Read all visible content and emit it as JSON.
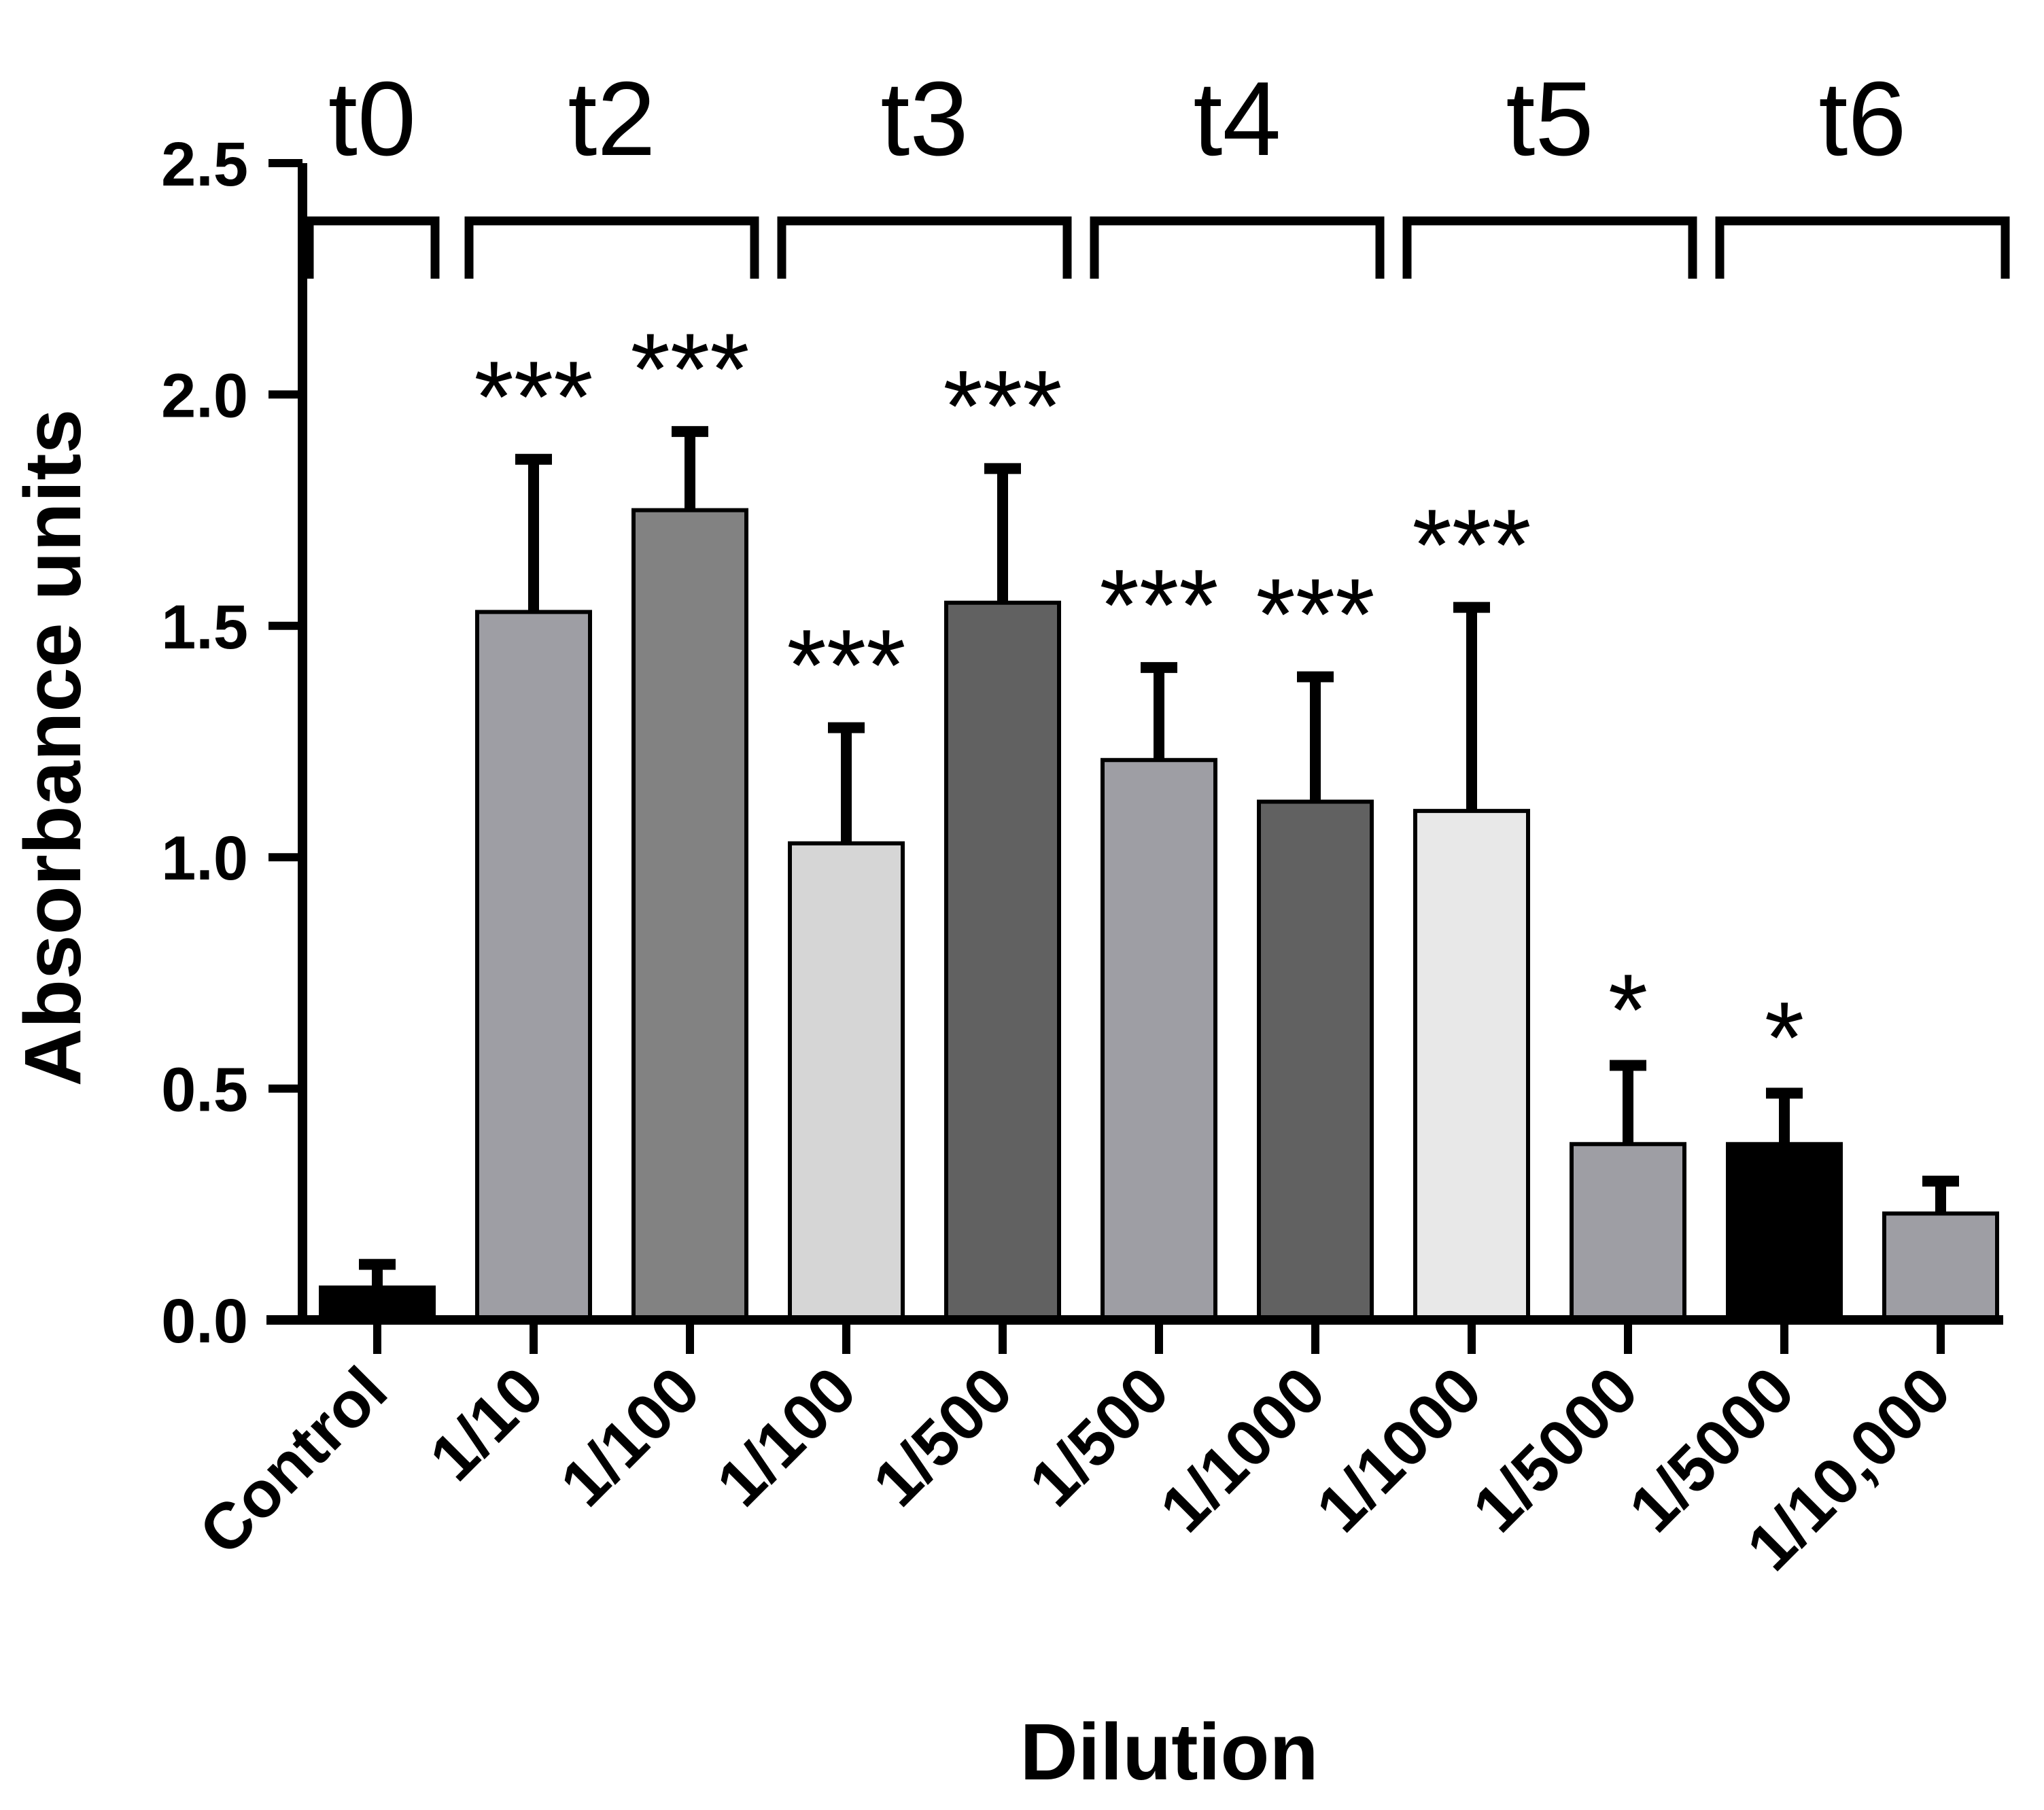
{
  "chart_data": {
    "type": "bar",
    "title": "",
    "xlabel": "Dilution",
    "ylabel": "Absorbance units",
    "ylim": [
      0,
      2.5
    ],
    "yticks": [
      "0.0",
      "0.5",
      "1.0",
      "1.5",
      "2.0",
      "2.5"
    ],
    "categories": [
      "Control",
      "1/10",
      "1/100",
      "1/100",
      "1/500",
      "1/500",
      "1/1000",
      "1/1000",
      "1/5000",
      "1/5000",
      "1/10,000"
    ],
    "values": [
      0.07,
      1.53,
      1.75,
      1.03,
      1.55,
      1.21,
      1.12,
      1.1,
      0.38,
      0.38,
      0.23
    ],
    "errors": [
      0.05,
      0.33,
      0.17,
      0.25,
      0.29,
      0.2,
      0.27,
      0.44,
      0.17,
      0.11,
      0.07
    ],
    "significance": [
      "",
      "***",
      "***",
      "***",
      "***",
      "***",
      "***",
      "***",
      "*",
      "*",
      ""
    ],
    "bar_colors": [
      "#000000",
      "#9e9ea4",
      "#828282",
      "#d6d6d6",
      "#616161",
      "#9e9ea4",
      "#616161",
      "#e8e8e8",
      "#9e9ea4",
      "#000000",
      "#9e9ea4"
    ],
    "groups": [
      {
        "label": "t0",
        "bars": [
          0
        ]
      },
      {
        "label": "t2",
        "bars": [
          1,
          2
        ]
      },
      {
        "label": "t3",
        "bars": [
          3,
          4
        ]
      },
      {
        "label": "t4",
        "bars": [
          5,
          6
        ]
      },
      {
        "label": "t5",
        "bars": [
          7,
          8
        ]
      },
      {
        "label": "t6",
        "bars": [
          9,
          10
        ]
      }
    ],
    "grid": false,
    "legend": "none"
  }
}
